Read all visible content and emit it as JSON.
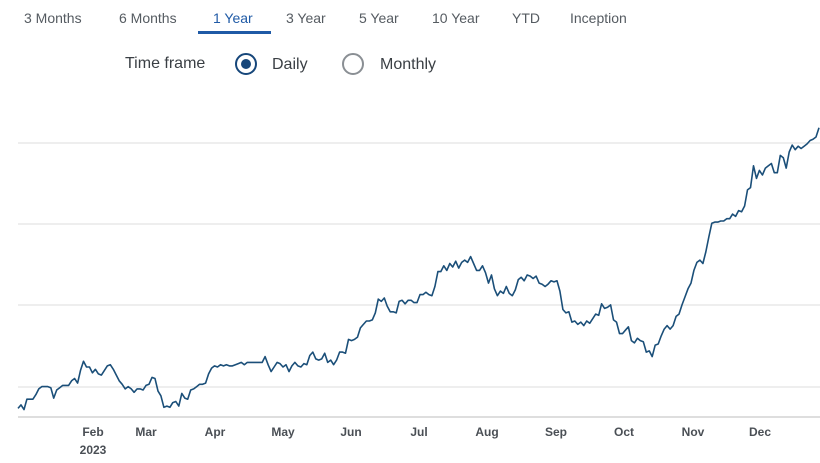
{
  "tabs": [
    {
      "label": "3 Months",
      "active": false
    },
    {
      "label": "6 Months",
      "active": false
    },
    {
      "label": "1 Year",
      "active": true
    },
    {
      "label": "3 Year",
      "active": false
    },
    {
      "label": "5 Year",
      "active": false
    },
    {
      "label": "10 Year",
      "active": false
    },
    {
      "label": "YTD",
      "active": false
    },
    {
      "label": "Inception",
      "active": false
    }
  ],
  "timeframe": {
    "label": "Time frame",
    "options": [
      {
        "label": "Daily",
        "selected": true
      },
      {
        "label": "Monthly",
        "selected": false
      }
    ]
  },
  "colors": {
    "line": "#1b4f79",
    "accent": "#1f5aa6",
    "grid": "#dcdcdc",
    "radio": "#16467a"
  },
  "chart_data": {
    "type": "line",
    "x_ticks": [
      "Feb",
      "Mar",
      "Apr",
      "May",
      "Jun",
      "Jul",
      "Aug",
      "Sep",
      "Oct",
      "Nov",
      "Dec"
    ],
    "year_label": "2023",
    "grid": true,
    "yticks_shown": false,
    "note": "relative daily price path; y axis unlabeled",
    "series": [
      {
        "values": [
          4,
          7,
          3,
          12,
          12,
          12,
          16,
          21,
          23,
          23,
          23,
          22,
          13,
          20,
          22,
          24,
          24,
          24,
          28,
          30,
          26,
          37,
          45,
          40,
          40,
          35,
          38,
          34,
          33,
          37,
          41,
          42,
          38,
          33,
          28,
          25,
          21,
          23,
          21,
          18,
          21,
          21,
          20,
          24,
          25,
          31,
          30,
          19,
          15,
          5,
          6,
          5,
          9,
          10,
          6,
          17,
          13,
          12,
          20,
          21,
          23,
          25,
          25,
          26,
          34,
          39,
          41,
          40,
          42,
          41,
          42,
          41,
          41,
          42,
          43,
          44,
          42,
          44,
          44,
          44,
          44,
          44,
          44,
          49,
          42,
          36,
          40,
          44,
          43,
          40,
          42,
          36,
          41,
          44,
          41,
          40,
          43,
          42,
          50,
          53,
          47,
          46,
          47,
          52,
          44,
          46,
          42,
          46,
          53,
          53,
          52,
          64,
          63,
          64,
          66,
          74,
          77,
          80,
          80,
          81,
          87,
          99,
          97,
          100,
          93,
          88,
          88,
          87,
          97,
          98,
          95,
          98,
          98,
          96,
          96,
          103,
          103,
          105,
          103,
          102,
          110,
          123,
          123,
          128,
          124,
          130,
          127,
          132,
          126,
          131,
          133,
          131,
          136,
          130,
          124,
          124,
          128,
          122,
          113,
          120,
          108,
          102,
          106,
          104,
          110,
          104,
          102,
          107,
          116,
          118,
          115,
          120,
          119,
          117,
          119,
          113,
          112,
          110,
          112,
          115,
          114,
          115,
          106,
          90,
          87,
          88,
          79,
          80,
          77,
          79,
          76,
          80,
          78,
          82,
          86,
          85,
          95,
          91,
          92,
          94,
          81,
          79,
          69,
          69,
          72,
          75,
          63,
          61,
          65,
          63,
          62,
          53,
          54,
          49,
          59,
          60,
          67,
          73,
          76,
          73,
          76,
          84,
          86,
          94,
          101,
          108,
          113,
          124,
          131,
          133,
          130,
          140,
          153,
          165,
          166,
          166,
          167,
          167,
          169,
          169,
          173,
          171,
          176,
          175,
          180,
          194,
          196,
          215,
          204,
          211,
          207,
          213,
          215,
          217,
          209,
          209,
          224,
          222,
          213,
          227,
          233,
          229,
          232,
          230,
          232,
          234,
          237,
          238,
          240,
          248
        ]
      }
    ]
  }
}
